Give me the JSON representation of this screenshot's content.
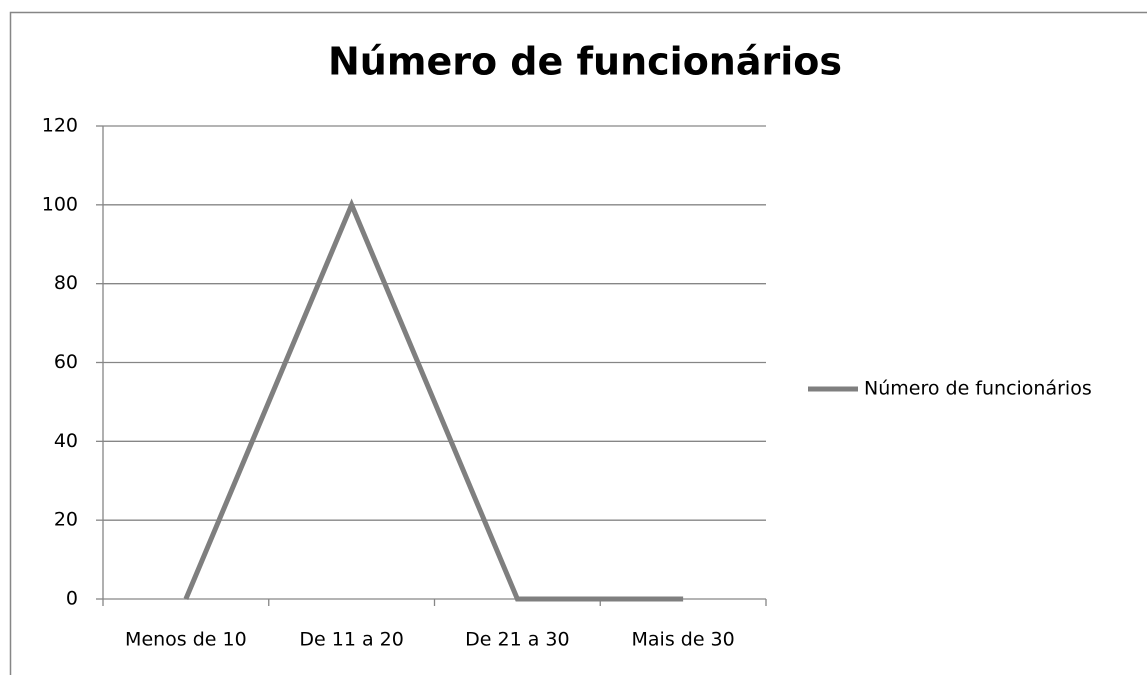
{
  "chart_data": {
    "type": "line",
    "title": "Número de funcionários",
    "categories": [
      "Menos de 10",
      "De 11 a 20",
      "De 21 a 30",
      "Mais de 30"
    ],
    "series": [
      {
        "name": "Número de funcionários",
        "color": "#7f7f7f",
        "values": [
          0,
          100,
          0,
          0
        ]
      }
    ],
    "ylim": [
      0,
      120
    ],
    "yticks": [
      0,
      20,
      40,
      60,
      80,
      100,
      120
    ],
    "grid": true,
    "legend": "right"
  }
}
